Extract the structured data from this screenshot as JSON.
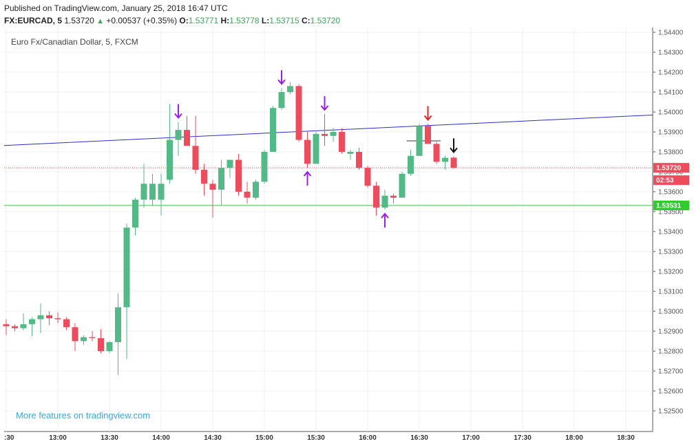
{
  "header": {
    "published": "Published on TradingView.com, January 25, 2018 16:47 UTC",
    "symbol": "FX:EURCAD, 5",
    "price": "1.53720",
    "change": "+0.00537 (+0.35%)",
    "o_label": "O:",
    "o_value": "1.53771",
    "h_label": "H:",
    "h_value": "1.53778",
    "l_label": "L:",
    "l_value": "1.53715",
    "c_label": "C:",
    "c_value": "1.53720"
  },
  "chart_title": "Euro Fx/Canadian Dollar, 5, FXCM",
  "watermark": "More features on tradingview.com",
  "colors": {
    "up": "#53b987",
    "down": "#eb4d5c",
    "trendline": "#2b2bd0",
    "support": "#2fcc2f",
    "price_line": "#eb4d5c",
    "arrow": "#9b1cf0"
  },
  "chart_data": {
    "type": "candlestick",
    "timeframe": "5m",
    "ylim": [
      1.5243,
      1.5445
    ],
    "y_ticks": [
      "1.54400",
      "1.54300",
      "1.54200",
      "1.54100",
      "1.54000",
      "1.53900",
      "1.53800",
      "1.53700",
      "1.53600",
      "1.53500",
      "1.53400",
      "1.53300",
      "1.53200",
      "1.53100",
      "1.53000",
      "1.52900",
      "1.52800",
      "1.52700",
      "1.52600",
      "1.52500"
    ],
    "x_ticks": [
      ":30",
      "13:00",
      "13:30",
      "14:00",
      "14:30",
      "15:00",
      "15:30",
      "16:00",
      "16:30",
      "17:00",
      "17:30",
      "18:00",
      "18:30"
    ],
    "candles": [
      {
        "t": "12:30",
        "o": 1.52935,
        "h": 1.5296,
        "l": 1.5288,
        "c": 1.52925
      },
      {
        "t": "12:35",
        "o": 1.52925,
        "h": 1.52935,
        "l": 1.529,
        "c": 1.52915
      },
      {
        "t": "12:40",
        "o": 1.52915,
        "h": 1.5299,
        "l": 1.52905,
        "c": 1.52935
      },
      {
        "t": "12:45",
        "o": 1.52935,
        "h": 1.5297,
        "l": 1.52875,
        "c": 1.5296
      },
      {
        "t": "12:50",
        "o": 1.5296,
        "h": 1.5304,
        "l": 1.5289,
        "c": 1.5298
      },
      {
        "t": "12:55",
        "o": 1.5298,
        "h": 1.53,
        "l": 1.5293,
        "c": 1.52965
      },
      {
        "t": "13:00",
        "o": 1.52965,
        "h": 1.52995,
        "l": 1.5294,
        "c": 1.5296
      },
      {
        "t": "13:05",
        "o": 1.5296,
        "h": 1.5297,
        "l": 1.52905,
        "c": 1.5292
      },
      {
        "t": "13:10",
        "o": 1.5292,
        "h": 1.5294,
        "l": 1.528,
        "c": 1.5285
      },
      {
        "t": "13:15",
        "o": 1.5285,
        "h": 1.5288,
        "l": 1.5283,
        "c": 1.5287
      },
      {
        "t": "13:20",
        "o": 1.5287,
        "h": 1.529,
        "l": 1.5285,
        "c": 1.52865
      },
      {
        "t": "13:25",
        "o": 1.52865,
        "h": 1.5291,
        "l": 1.5279,
        "c": 1.528
      },
      {
        "t": "13:30",
        "o": 1.528,
        "h": 1.5285,
        "l": 1.5279,
        "c": 1.52845
      },
      {
        "t": "13:35",
        "o": 1.52845,
        "h": 1.5309,
        "l": 1.5268,
        "c": 1.5302
      },
      {
        "t": "13:40",
        "o": 1.5302,
        "h": 1.5344,
        "l": 1.5276,
        "c": 1.5342
      },
      {
        "t": "13:45",
        "o": 1.5342,
        "h": 1.5357,
        "l": 1.5338,
        "c": 1.5356
      },
      {
        "t": "13:50",
        "o": 1.5356,
        "h": 1.5374,
        "l": 1.5352,
        "c": 1.5364
      },
      {
        "t": "13:55",
        "o": 1.5356,
        "h": 1.5369,
        "l": 1.5353,
        "c": 1.5364
      },
      {
        "t": "14:00",
        "o": 1.5356,
        "h": 1.5369,
        "l": 1.5348,
        "c": 1.5364
      },
      {
        "t": "14:05",
        "o": 1.5366,
        "h": 1.5404,
        "l": 1.5364,
        "c": 1.5386
      },
      {
        "t": "14:10",
        "o": 1.5386,
        "h": 1.5395,
        "l": 1.5378,
        "c": 1.5391
      },
      {
        "t": "14:15",
        "o": 1.5391,
        "h": 1.5398,
        "l": 1.5383,
        "c": 1.5383
      },
      {
        "t": "14:20",
        "o": 1.5383,
        "h": 1.5398,
        "l": 1.5369,
        "c": 1.5371
      },
      {
        "t": "14:25",
        "o": 1.5371,
        "h": 1.5374,
        "l": 1.5358,
        "c": 1.5364
      },
      {
        "t": "14:30",
        "o": 1.5364,
        "h": 1.5366,
        "l": 1.5347,
        "c": 1.5361
      },
      {
        "t": "14:35",
        "o": 1.5361,
        "h": 1.5376,
        "l": 1.5353,
        "c": 1.5372
      },
      {
        "t": "14:40",
        "o": 1.5372,
        "h": 1.5376,
        "l": 1.5367,
        "c": 1.5376
      },
      {
        "t": "14:45",
        "o": 1.5376,
        "h": 1.5379,
        "l": 1.5358,
        "c": 1.536
      },
      {
        "t": "14:50",
        "o": 1.536,
        "h": 1.5365,
        "l": 1.5354,
        "c": 1.5357
      },
      {
        "t": "14:55",
        "o": 1.5357,
        "h": 1.5366,
        "l": 1.5356,
        "c": 1.5365
      },
      {
        "t": "15:00",
        "o": 1.5365,
        "h": 1.5381,
        "l": 1.5364,
        "c": 1.538
      },
      {
        "t": "15:05",
        "o": 1.538,
        "h": 1.5403,
        "l": 1.538,
        "c": 1.5402
      },
      {
        "t": "15:10",
        "o": 1.5402,
        "h": 1.5412,
        "l": 1.5401,
        "c": 1.541
      },
      {
        "t": "15:15",
        "o": 1.541,
        "h": 1.5415,
        "l": 1.5409,
        "c": 1.5413
      },
      {
        "t": "15:20",
        "o": 1.5413,
        "h": 1.5414,
        "l": 1.5385,
        "c": 1.5386
      },
      {
        "t": "15:25",
        "o": 1.5386,
        "h": 1.539,
        "l": 1.5372,
        "c": 1.5374
      },
      {
        "t": "15:30",
        "o": 1.5374,
        "h": 1.539,
        "l": 1.5374,
        "c": 1.5389
      },
      {
        "t": "15:35",
        "o": 1.5389,
        "h": 1.5399,
        "l": 1.5383,
        "c": 1.5388
      },
      {
        "t": "15:40",
        "o": 1.5388,
        "h": 1.5392,
        "l": 1.5385,
        "c": 1.539
      },
      {
        "t": "15:45",
        "o": 1.539,
        "h": 1.5392,
        "l": 1.5379,
        "c": 1.538
      },
      {
        "t": "15:50",
        "o": 1.5379,
        "h": 1.5381,
        "l": 1.5376,
        "c": 1.538
      },
      {
        "t": "15:55",
        "o": 1.538,
        "h": 1.5382,
        "l": 1.5371,
        "c": 1.5372
      },
      {
        "t": "16:00",
        "o": 1.5372,
        "h": 1.5373,
        "l": 1.5362,
        "c": 1.5363
      },
      {
        "t": "16:05",
        "o": 1.5363,
        "h": 1.5365,
        "l": 1.5348,
        "c": 1.5352
      },
      {
        "t": "16:10",
        "o": 1.5352,
        "h": 1.5361,
        "l": 1.5351,
        "c": 1.5358
      },
      {
        "t": "16:15",
        "o": 1.5358,
        "h": 1.5359,
        "l": 1.5354,
        "c": 1.5357
      },
      {
        "t": "16:20",
        "o": 1.5357,
        "h": 1.537,
        "l": 1.5357,
        "c": 1.5369
      },
      {
        "t": "16:25",
        "o": 1.5369,
        "h": 1.5381,
        "l": 1.5368,
        "c": 1.5378
      },
      {
        "t": "16:30",
        "o": 1.5378,
        "h": 1.5394,
        "l": 1.5378,
        "c": 1.5393
      },
      {
        "t": "16:35",
        "o": 1.5393,
        "h": 1.5394,
        "l": 1.5384,
        "c": 1.5384
      },
      {
        "t": "16:40",
        "o": 1.5384,
        "h": 1.5385,
        "l": 1.5374,
        "c": 1.5375
      },
      {
        "t": "16:45",
        "o": 1.5375,
        "h": 1.5378,
        "l": 1.5371,
        "c": 1.5377
      },
      {
        "t": "16:50",
        "o": 1.53771,
        "h": 1.53778,
        "l": 1.53715,
        "c": 1.5372
      }
    ],
    "trendline": {
      "from": {
        "t": "12:30",
        "price": 1.53832
      },
      "to": {
        "t": "18:45",
        "price": 1.53985
      }
    },
    "support_line": {
      "price": 1.53531,
      "label": "1.53531"
    },
    "current_price": {
      "price": 1.5372,
      "label": "1.53720",
      "countdown": "02:53"
    },
    "horizontal_segment": {
      "from_t": "16:25",
      "to_t": "16:40",
      "price": 1.53855
    },
    "arrows": [
      {
        "t": "14:10",
        "dir": "down",
        "color": "purple"
      },
      {
        "t": "15:10",
        "dir": "down",
        "color": "purple"
      },
      {
        "t": "15:25",
        "dir": "up",
        "color": "purple"
      },
      {
        "t": "15:35",
        "dir": "down",
        "color": "purple"
      },
      {
        "t": "16:10",
        "dir": "up",
        "color": "purple"
      },
      {
        "t": "16:35",
        "dir": "down",
        "color": "red"
      },
      {
        "t": "16:50",
        "dir": "down",
        "color": "black"
      }
    ]
  }
}
